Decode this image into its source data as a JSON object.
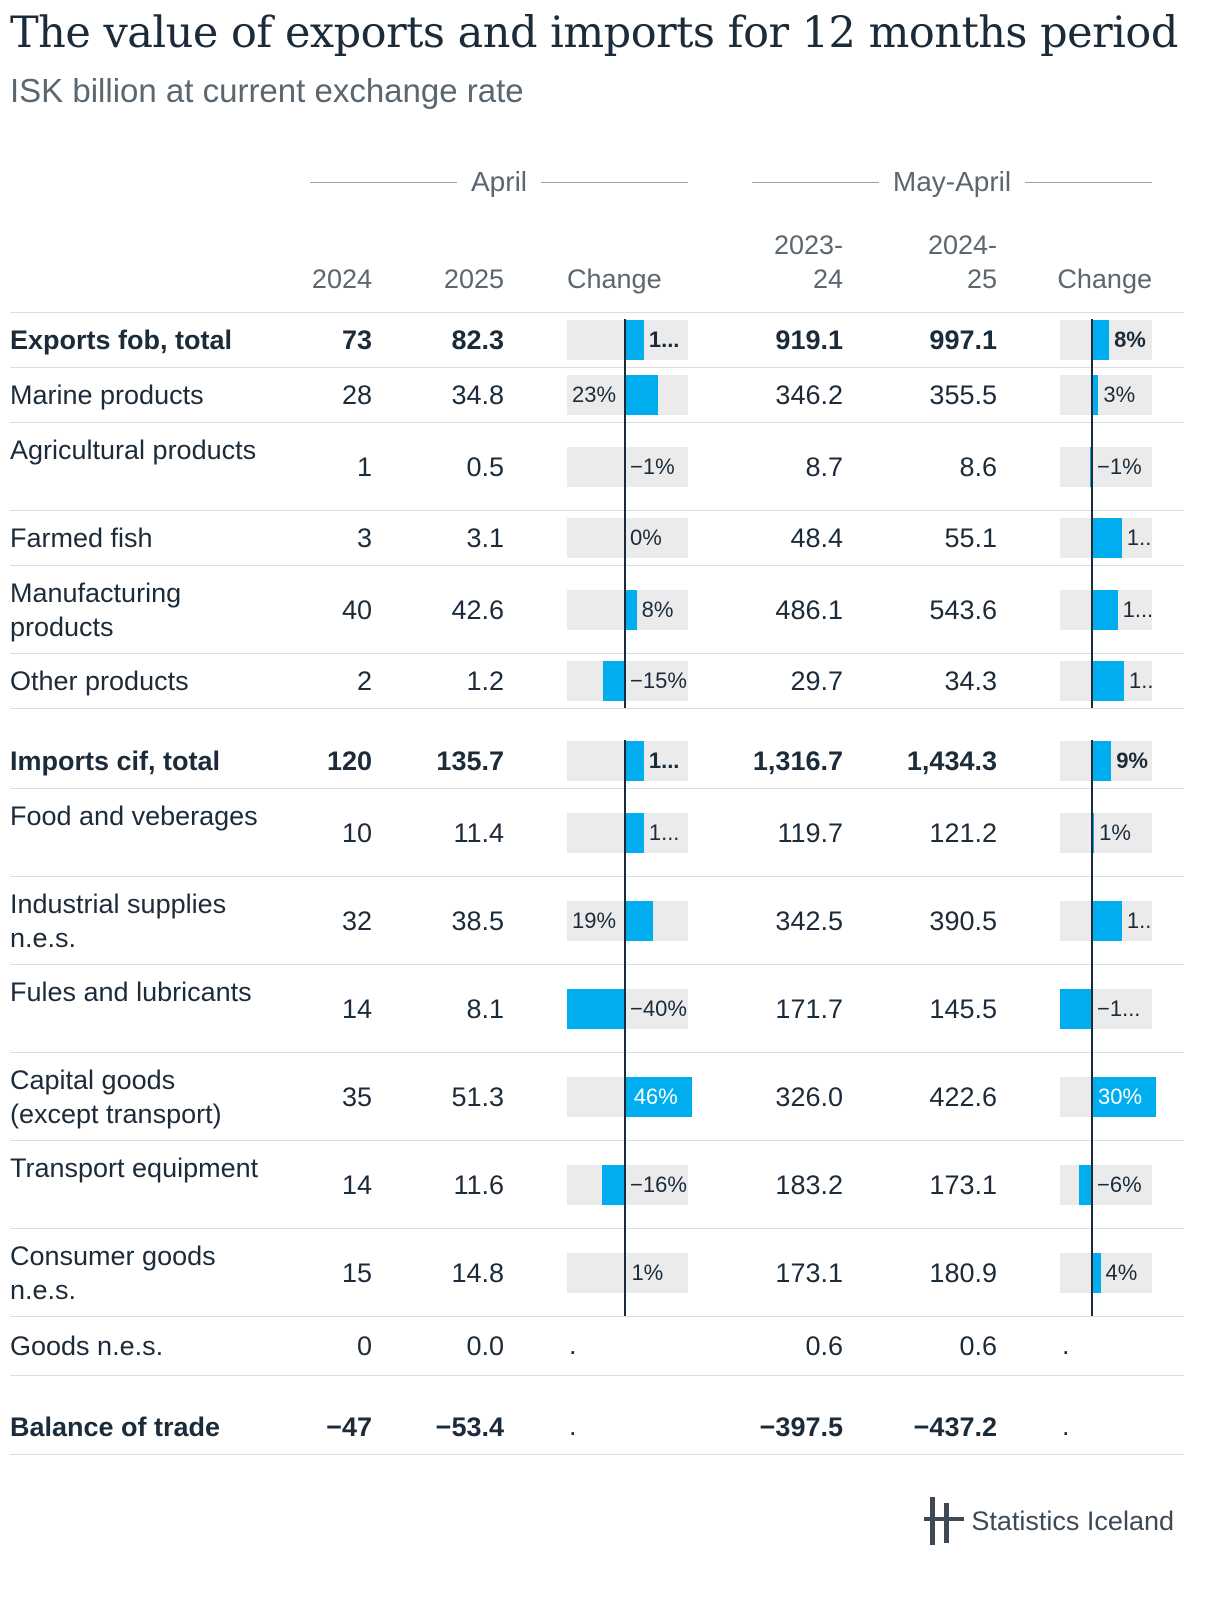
{
  "title": "The value of exports and imports for 12 months period",
  "subtitle": "ISK billion at current exchange rate",
  "groups": {
    "april": "April",
    "may_april": "May-April"
  },
  "columns": {
    "y2024": "2024",
    "y2025": "2025",
    "change_a": "Change",
    "p2324": "2023-\n24",
    "p2425": "2024-\n25",
    "change_b": "Change"
  },
  "brand": "Statistics Iceland",
  "colors": {
    "bar": "#00aeef",
    "bar_bg": "#ebebeb",
    "text": "#1c2b39",
    "muted": "#5b6770"
  },
  "chart_data": {
    "type": "table",
    "rows": [
      {
        "label": "Exports fob, total",
        "bold": true,
        "v2024": "73",
        "v2025": "82.3",
        "chg_a": 13,
        "chg_a_label": "1...",
        "v2324": "919.1",
        "v2425": "997.1",
        "chg_b": 8,
        "chg_b_label": "8%"
      },
      {
        "label": "Marine products",
        "bold": false,
        "v2024": "28",
        "v2025": "34.8",
        "chg_a": 23,
        "chg_a_label": "23%",
        "v2324": "346.2",
        "v2425": "355.5",
        "chg_b": 3,
        "chg_b_label": "3%"
      },
      {
        "label": "Agricultural products",
        "bold": false,
        "v2024": "1",
        "v2025": "0.5",
        "chg_a": -1,
        "chg_a_label": "−1%",
        "v2324": "8.7",
        "v2425": "8.6",
        "chg_b": -1,
        "chg_b_label": "−1%"
      },
      {
        "label": "Farmed fish",
        "bold": false,
        "v2024": "3",
        "v2025": "3.1",
        "chg_a": 0,
        "chg_a_label": "0%",
        "v2324": "48.4",
        "v2425": "55.1",
        "chg_b": 14,
        "chg_b_label": "1.."
      },
      {
        "label": "Manufacturing products",
        "bold": false,
        "v2024": "40",
        "v2025": "42.6",
        "chg_a": 8,
        "chg_a_label": "8%",
        "v2324": "486.1",
        "v2425": "543.6",
        "chg_b": 12,
        "chg_b_label": "1..."
      },
      {
        "label": "Other products",
        "bold": false,
        "v2024": "2",
        "v2025": "1.2",
        "chg_a": -15,
        "chg_a_label": "−15%",
        "v2324": "29.7",
        "v2425": "34.3",
        "chg_b": 15,
        "chg_b_label": "1.."
      },
      {
        "label": "Imports cif, total",
        "bold": true,
        "v2024": "120",
        "v2025": "135.7",
        "chg_a": 13,
        "chg_a_label": "1...",
        "v2324": "1,316.7",
        "v2425": "1,434.3",
        "chg_b": 9,
        "chg_b_label": "9%"
      },
      {
        "label": "Food and veberages",
        "bold": false,
        "v2024": "10",
        "v2025": "11.4",
        "chg_a": 13,
        "chg_a_label": "1...",
        "v2324": "119.7",
        "v2425": "121.2",
        "chg_b": 1,
        "chg_b_label": "1%"
      },
      {
        "label": "Industrial supplies n.e.s.",
        "bold": false,
        "v2024": "32",
        "v2025": "38.5",
        "chg_a": 19,
        "chg_a_label": "19%",
        "v2324": "342.5",
        "v2425": "390.5",
        "chg_b": 14,
        "chg_b_label": "1.."
      },
      {
        "label": "Fules and lubricants",
        "bold": false,
        "v2024": "14",
        "v2025": "8.1",
        "chg_a": -40,
        "chg_a_label": "−40%",
        "v2324": "171.7",
        "v2425": "145.5",
        "chg_b": -15,
        "chg_b_label": "−1..."
      },
      {
        "label": "Capital goods (except transport)",
        "bold": false,
        "v2024": "35",
        "v2025": "51.3",
        "chg_a": 46,
        "chg_a_label": "46%",
        "v2324": "326.0",
        "v2425": "422.6",
        "chg_b": 30,
        "chg_b_label": "30%"
      },
      {
        "label": "Transport equipment",
        "bold": false,
        "v2024": "14",
        "v2025": "11.6",
        "chg_a": -16,
        "chg_a_label": "−16%",
        "v2324": "183.2",
        "v2425": "173.1",
        "chg_b": -6,
        "chg_b_label": "−6%"
      },
      {
        "label": "Consumer goods n.e.s.",
        "bold": false,
        "v2024": "15",
        "v2025": "14.8",
        "chg_a": 1,
        "chg_a_label": "1%",
        "v2324": "173.1",
        "v2425": "180.9",
        "chg_b": 4,
        "chg_b_label": "4%"
      },
      {
        "label": "Goods n.e.s.",
        "bold": false,
        "v2024": "0",
        "v2025": "0.0",
        "chg_a": null,
        "chg_a_label": ".",
        "v2324": "0.6",
        "v2425": "0.6",
        "chg_b": null,
        "chg_b_label": "."
      },
      {
        "label": "Balance of trade",
        "bold": true,
        "v2024": "−47",
        "v2025": "−53.4",
        "chg_a": null,
        "chg_a_label": ".",
        "v2324": "−397.5",
        "v2425": "−437.2",
        "chg_b": null,
        "chg_b_label": "."
      }
    ]
  }
}
